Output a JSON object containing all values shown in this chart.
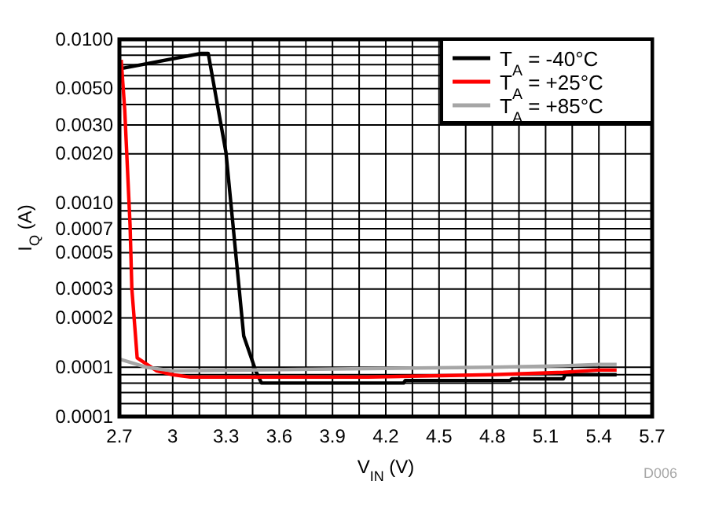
{
  "chart_data": {
    "type": "line",
    "xlabel": "V$_{IN}$ (V)",
    "ylabel": "I$_{Q}$ (A)",
    "log": "y",
    "grid": true,
    "legend": "top right",
    "line_style": "solid",
    "marker": "none",
    "xlim": [
      2.7,
      5.7
    ],
    "xticks": [
      2.7,
      {
        "value": 2.85,
        "label": null
      },
      3,
      {
        "value": 3.15,
        "label": null
      },
      3.3,
      {
        "value": 3.45,
        "label": null
      },
      3.6,
      {
        "value": 3.75,
        "label": null
      },
      3.9,
      {
        "value": 4.05,
        "label": null
      },
      4.2,
      {
        "value": 4.35,
        "label": null
      },
      4.5,
      {
        "value": 4.65,
        "label": null
      },
      4.8,
      {
        "value": 4.95,
        "label": null
      },
      5.1,
      {
        "value": 5.25,
        "label": null
      },
      5.4,
      {
        "value": 5.55,
        "label": null
      },
      5.7
    ],
    "ylim": [
      5e-05,
      0.01
    ],
    "yticks": [
      {
        "value": 5e-05,
        "label": "0.0001"
      },
      {
        "value": 6e-05,
        "label": null
      },
      {
        "value": 7e-05,
        "label": null
      },
      {
        "value": 8e-05,
        "label": null
      },
      {
        "value": 9e-05,
        "label": null
      },
      {
        "value": 0.0001,
        "label": "0.0001"
      },
      {
        "value": 0.0002,
        "label": "0.0002"
      },
      {
        "value": 0.0003,
        "label": "0.0003"
      },
      {
        "value": 0.0004,
        "label": null
      },
      {
        "value": 0.0005,
        "label": "0.0005"
      },
      {
        "value": 0.0006,
        "label": null
      },
      {
        "value": 0.0007,
        "label": "0.0007"
      },
      {
        "value": 0.0008,
        "label": null
      },
      {
        "value": 0.0009,
        "label": null
      },
      {
        "value": 0.001,
        "label": "0.0010"
      },
      {
        "value": 0.002,
        "label": "0.0020"
      },
      {
        "value": 0.003,
        "label": "0.0030"
      },
      {
        "value": 0.004,
        "label": null
      },
      {
        "value": 0.005,
        "label": "0.0050"
      },
      {
        "value": 0.006,
        "label": null
      },
      {
        "value": 0.007,
        "label": null
      },
      {
        "value": 0.008,
        "label": null
      },
      {
        "value": 0.009,
        "label": null
      },
      {
        "value": 0.01,
        "label": "0.0100"
      }
    ],
    "annotations": [
      "D006"
    ],
    "series": [
      {
        "name": "T$_{A}$ = -40°C",
        "color": "#000000",
        "x": [
          2.7,
          3.16,
          3.2,
          3.3,
          3.4,
          3.47,
          3.5,
          4.3,
          4.31,
          4.9,
          4.91,
          5.2,
          5.21,
          5.5
        ],
        "values": [
          0.0066,
          0.0082,
          0.0082,
          0.00204,
          0.000155,
          9.35e-05,
          8e-05,
          8e-05,
          8.3e-05,
          8.3e-05,
          8.5e-05,
          8.5e-05,
          9e-05,
          9e-05
        ]
      },
      {
        "name": "T$_{A}$ = +25°C",
        "color": "#ff0000",
        "x": [
          2.71,
          2.73,
          2.76,
          2.77,
          2.79,
          2.8,
          2.91,
          3.0,
          3.1,
          4.1,
          4.8,
          5.2,
          5.4,
          5.5
        ],
        "values": [
          0.0075,
          0.0037,
          0.00073,
          0.0003,
          0.000158,
          0.000114,
          9.5e-05,
          9e-05,
          8.7e-05,
          8.7e-05,
          9e-05,
          9.3e-05,
          9.6e-05,
          9.6e-05
        ]
      },
      {
        "name": "T$_{A}$ = +85°C",
        "color": "#a6a6a6",
        "x": [
          2.7,
          2.85,
          3.0,
          4.8,
          5.2,
          5.4,
          5.5
        ],
        "values": [
          0.000112,
          0.0001,
          9.5e-05,
          0.0001,
          0.000102,
          0.000104,
          0.000104
        ]
      }
    ]
  }
}
